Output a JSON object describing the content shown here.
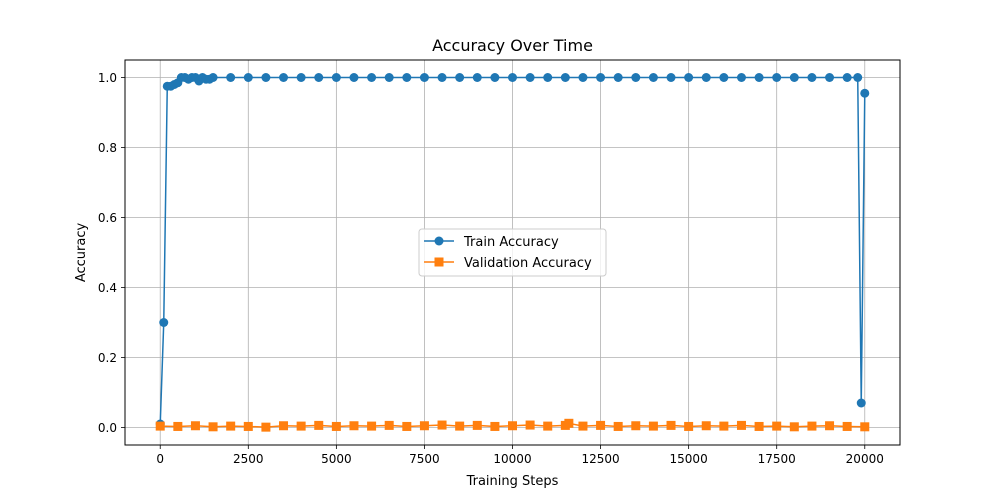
{
  "chart_data": {
    "type": "line",
    "title": "Accuracy Over Time",
    "xlabel": "Training Steps",
    "ylabel": "Accuracy",
    "xlim": [
      -1000,
      21000
    ],
    "ylim": [
      -0.05,
      1.05
    ],
    "xticks": [
      0,
      2500,
      5000,
      7500,
      10000,
      12500,
      15000,
      17500,
      20000
    ],
    "xtick_labels": [
      "0",
      "2500",
      "5000",
      "7500",
      "10000",
      "12500",
      "15000",
      "17500",
      "20000"
    ],
    "yticks": [
      0.0,
      0.2,
      0.4,
      0.6,
      0.8,
      1.0
    ],
    "ytick_labels": [
      "0.0",
      "0.2",
      "0.4",
      "0.6",
      "0.8",
      "1.0"
    ],
    "grid": true,
    "legend_position": "center",
    "series": [
      {
        "name": "Train Accuracy",
        "color": "#1f77b4",
        "marker": "circle",
        "x": [
          0,
          100,
          200,
          300,
          400,
          500,
          600,
          700,
          800,
          900,
          1000,
          1100,
          1200,
          1300,
          1400,
          1500,
          2000,
          2500,
          3000,
          3500,
          4000,
          4500,
          5000,
          5500,
          6000,
          6500,
          7000,
          7500,
          8000,
          8500,
          9000,
          9500,
          10000,
          10500,
          11000,
          11500,
          12000,
          12500,
          13000,
          13500,
          14000,
          14500,
          15000,
          15500,
          16000,
          16500,
          17000,
          17500,
          18000,
          18500,
          19000,
          19500,
          19800,
          19900,
          20000
        ],
        "y": [
          0.01,
          0.3,
          0.975,
          0.975,
          0.98,
          0.985,
          1.0,
          1.0,
          0.995,
          1.0,
          1.0,
          0.99,
          1.0,
          0.995,
          0.995,
          1.0,
          1.0,
          1.0,
          1.0,
          1.0,
          1.0,
          1.0,
          1.0,
          1.0,
          1.0,
          1.0,
          1.0,
          1.0,
          1.0,
          1.0,
          1.0,
          1.0,
          1.0,
          1.0,
          1.0,
          1.0,
          1.0,
          1.0,
          1.0,
          1.0,
          1.0,
          1.0,
          1.0,
          1.0,
          1.0,
          1.0,
          1.0,
          1.0,
          1.0,
          1.0,
          1.0,
          1.0,
          1.0,
          0.07,
          0.955
        ]
      },
      {
        "name": "Validation Accuracy",
        "color": "#ff7f0e",
        "marker": "square",
        "x": [
          0,
          500,
          1000,
          1500,
          2000,
          2500,
          3000,
          3500,
          4000,
          4500,
          5000,
          5500,
          6000,
          6500,
          7000,
          7500,
          8000,
          8500,
          9000,
          9500,
          10000,
          10500,
          11000,
          11500,
          11600,
          12000,
          12500,
          13000,
          13500,
          14000,
          14500,
          15000,
          15500,
          16000,
          16500,
          17000,
          17500,
          18000,
          18500,
          19000,
          19500,
          20000
        ],
        "y": [
          0.004,
          0.003,
          0.005,
          0.002,
          0.004,
          0.003,
          0.001,
          0.005,
          0.004,
          0.006,
          0.003,
          0.005,
          0.004,
          0.006,
          0.003,
          0.005,
          0.007,
          0.004,
          0.006,
          0.003,
          0.005,
          0.007,
          0.004,
          0.006,
          0.012,
          0.004,
          0.006,
          0.003,
          0.005,
          0.004,
          0.006,
          0.003,
          0.005,
          0.004,
          0.006,
          0.003,
          0.004,
          0.002,
          0.004,
          0.005,
          0.003,
          0.002
        ]
      }
    ]
  }
}
